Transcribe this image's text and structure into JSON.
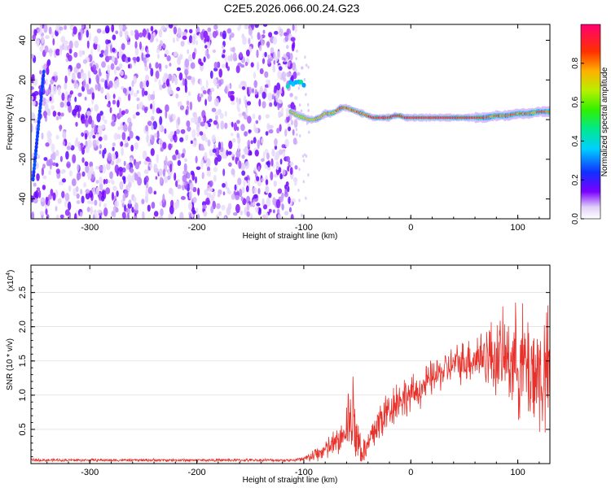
{
  "title": "C2E5.2026.066.00.24.G23",
  "chart_data": [
    {
      "type": "heatmap",
      "name": "spectrogram",
      "xlabel": "Height of straight line (km)",
      "ylabel": "Frequency (Hz)",
      "xlim": [
        -355,
        130
      ],
      "ylim": [
        -50,
        48
      ],
      "xticks": [
        "-300",
        "-200",
        "-100",
        "0",
        "100"
      ],
      "xtick_values": [
        -300,
        -200,
        -100,
        0,
        100
      ],
      "yticks": [
        "-40",
        "-20",
        "0",
        "20",
        "40"
      ],
      "ytick_values": [
        -40,
        -20,
        0,
        20,
        40
      ],
      "colorbar": {
        "label": "Normalized spectral amplitude",
        "range": [
          0,
          1
        ],
        "ticks": [
          "0.0",
          "0.2",
          "0.4",
          "0.6",
          "0.8"
        ],
        "tick_values": [
          0.0,
          0.2,
          0.4,
          0.6,
          0.8
        ]
      },
      "noise_region_x": [
        -355,
        -107
      ],
      "diagonal_streak": {
        "x": [
          -353,
          -343
        ],
        "y": [
          -30,
          24
        ]
      },
      "signal_track": {
        "x": [
          -112,
          -105,
          -100,
          -95,
          -90,
          -85,
          -80,
          -75,
          -70,
          -65,
          -60,
          -55,
          -50,
          -45,
          -40,
          -35,
          -30,
          -25,
          -20,
          -15,
          -10,
          -5,
          0,
          10,
          20,
          30,
          40,
          50,
          60,
          70,
          80,
          90,
          100,
          110,
          120,
          130
        ],
        "y": [
          4,
          2,
          1,
          0,
          0,
          1,
          3,
          3,
          4,
          6,
          6,
          5,
          4,
          3,
          2,
          1,
          1,
          1,
          1,
          2,
          2,
          1,
          1,
          1,
          1,
          1,
          1,
          1,
          1,
          1,
          2,
          2,
          3,
          3,
          4,
          4
        ]
      },
      "secondary_track": {
        "x": [
          -115,
          -98
        ],
        "y": [
          18,
          18
        ]
      }
    },
    {
      "type": "line",
      "name": "snr",
      "xlabel": "Height of straight line (km)",
      "ylabel": "SNR (10 * v/v)",
      "y_multiplier": "(x10",
      "y_multiplier_exp": "4",
      "y_multiplier_close": ")",
      "xlim": [
        -355,
        130
      ],
      "ylim": [
        0,
        2.9
      ],
      "xticks": [
        "-300",
        "-200",
        "-100",
        "0",
        "100"
      ],
      "xtick_values": [
        -300,
        -200,
        -100,
        0,
        100
      ],
      "yticks": [
        "0.5",
        "1.0",
        "1.5",
        "2.0",
        "2.5"
      ],
      "ytick_values": [
        0.5,
        1.0,
        1.5,
        2.0,
        2.5
      ],
      "color": "#e8312b",
      "envelope": {
        "x": [
          -355,
          -110,
          -100,
          -90,
          -80,
          -70,
          -60,
          -55,
          -50,
          -45,
          -40,
          -35,
          -30,
          -25,
          -20,
          -15,
          -10,
          0,
          10,
          20,
          30,
          40,
          50,
          60,
          70,
          80,
          90,
          100,
          110,
          120,
          130
        ],
        "mean": [
          0.05,
          0.05,
          0.06,
          0.12,
          0.2,
          0.3,
          0.45,
          0.6,
          0.4,
          0.15,
          0.25,
          0.45,
          0.6,
          0.7,
          0.8,
          0.9,
          0.95,
          1.0,
          1.1,
          1.25,
          1.35,
          1.45,
          1.5,
          1.55,
          1.6,
          1.55,
          1.55,
          1.5,
          1.4,
          1.3,
          1.25
        ],
        "spread": [
          0.02,
          0.02,
          0.05,
          0.1,
          0.15,
          0.2,
          0.3,
          0.5,
          0.5,
          0.2,
          0.25,
          0.3,
          0.35,
          0.3,
          0.3,
          0.3,
          0.3,
          0.25,
          0.25,
          0.25,
          0.25,
          0.25,
          0.3,
          0.35,
          0.45,
          0.55,
          0.6,
          0.75,
          0.85,
          0.9,
          0.9
        ]
      }
    }
  ]
}
